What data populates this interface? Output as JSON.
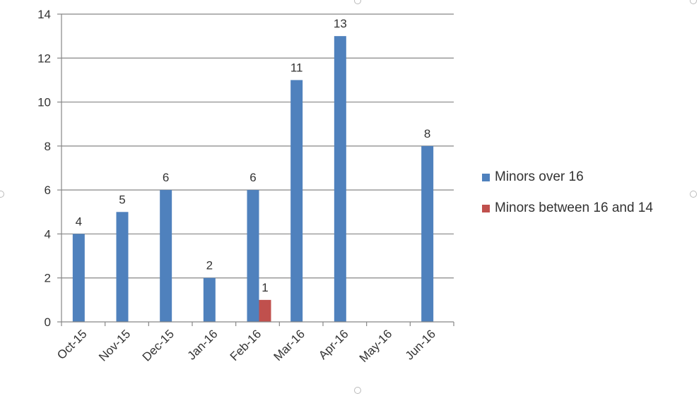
{
  "chart_data": {
    "type": "bar",
    "categories": [
      "Oct-15",
      "Nov-15",
      "Dec-15",
      "Jan-16",
      "Feb-16",
      "Mar-16",
      "Apr-16",
      "May-16",
      "Jun-16"
    ],
    "series": [
      {
        "name": "Minors over 16",
        "color": "#4f81bd",
        "values": [
          4,
          5,
          6,
          2,
          6,
          11,
          13,
          null,
          8
        ]
      },
      {
        "name": "Minors between 16 and 14",
        "color": "#c0504d",
        "values": [
          null,
          null,
          null,
          null,
          1,
          null,
          null,
          null,
          null
        ]
      }
    ],
    "ylim": [
      0,
      14
    ],
    "yticks": [
      "0",
      "2",
      "4",
      "6",
      "8",
      "10",
      "12",
      "14"
    ],
    "grid": true,
    "legend_position": "right",
    "data_labels": true
  }
}
